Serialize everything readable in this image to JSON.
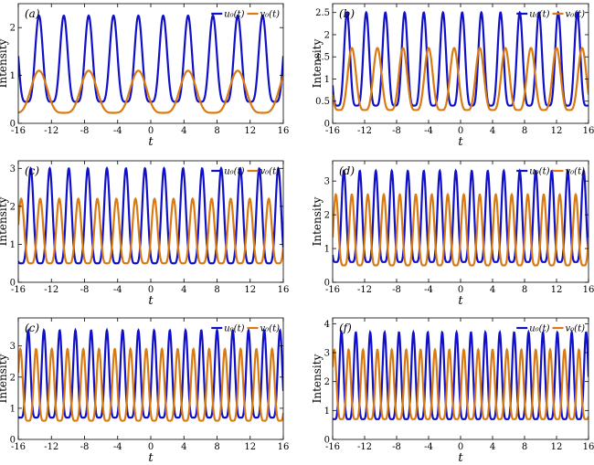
{
  "figure": {
    "series_colors": {
      "u": "#1010c8",
      "v": "#d97a12"
    }
  },
  "chart_data": [
    {
      "panel": "(a)",
      "type": "line",
      "xlabel": "t",
      "ylabel": "Intensity",
      "xlim": [
        -16,
        16
      ],
      "ylim": [
        0,
        2.5
      ],
      "xticks": [
        -16,
        -12,
        -8,
        -4,
        0,
        4,
        8,
        12,
        16
      ],
      "xtick_labels": [
        "-16",
        "-12",
        "-8",
        "-4",
        "0",
        "4",
        "8",
        "12",
        "16"
      ],
      "yticks": [
        0,
        1,
        2
      ],
      "ytick_labels": [
        "0",
        "1",
        "2"
      ],
      "legend": "top-right",
      "grid": false,
      "series": [
        {
          "name": "u_0(t)",
          "legend_label": "u₀(t)",
          "color": "#1010c8",
          "min": 0.45,
          "max": 2.25,
          "period": 3.0,
          "phase": -13.5,
          "sharp": 0.6
        },
        {
          "name": "v_0(t)",
          "legend_label": "v₀(t)",
          "color": "#d97a12",
          "min": 0.22,
          "max": 1.1,
          "period": 6.0,
          "phase": -13.5,
          "sharp": 0.5
        }
      ]
    },
    {
      "panel": "(b)",
      "type": "line",
      "xlabel": "t",
      "ylabel": "Intensity",
      "xlim": [
        -16,
        16
      ],
      "ylim": [
        0,
        2.7
      ],
      "xticks": [
        -16,
        -12,
        -8,
        -4,
        0,
        4,
        8,
        12,
        16
      ],
      "xtick_labels": [
        "-16",
        "-12",
        "-8",
        "-4",
        "0",
        "4",
        "8",
        "12",
        "16"
      ],
      "yticks": [
        0,
        0.5,
        1,
        1.5,
        2,
        2.5
      ],
      "ytick_labels": [
        "0",
        "0.5",
        "1",
        "1.5",
        "2",
        "2.5"
      ],
      "legend": "top-right",
      "grid": false,
      "series": [
        {
          "name": "u_0(t)",
          "legend_label": "u₀(t)",
          "color": "#1010c8",
          "min": 0.4,
          "max": 2.5,
          "period": 2.4,
          "phase": -14.2,
          "sharp": 0.6
        },
        {
          "name": "v_0(t)",
          "legend_label": "v₀(t)",
          "color": "#d97a12",
          "min": 0.3,
          "max": 1.7,
          "period": 3.2,
          "phase": -13.6,
          "sharp": 0.5
        }
      ]
    },
    {
      "panel": "(c)",
      "type": "line",
      "xlabel": "t",
      "ylabel": "Intensity",
      "xlim": [
        -16,
        16
      ],
      "ylim": [
        0,
        3.2
      ],
      "xticks": [
        -16,
        -12,
        -8,
        -4,
        0,
        4,
        8,
        12,
        16
      ],
      "xtick_labels": [
        "-16",
        "-12",
        "-8",
        "-4",
        "0",
        "4",
        "8",
        "12",
        "16"
      ],
      "yticks": [
        0,
        1,
        2,
        3
      ],
      "ytick_labels": [
        "0",
        "1",
        "2",
        "3"
      ],
      "legend": "top-right",
      "grid": false,
      "series": [
        {
          "name": "u_0(t)",
          "legend_label": "u₀(t)",
          "color": "#1010c8",
          "min": 0.5,
          "max": 3.0,
          "period": 2.3,
          "phase": -14.5,
          "sharp": 0.7
        },
        {
          "name": "v_0(t)",
          "legend_label": "v₀(t)",
          "color": "#d97a12",
          "min": 0.5,
          "max": 2.2,
          "period": 2.3,
          "phase": -13.35,
          "sharp": 0.6
        }
      ]
    },
    {
      "panel": "(d)",
      "type": "line",
      "xlabel": "t",
      "ylabel": "Intensity",
      "xlim": [
        -16,
        16
      ],
      "ylim": [
        0,
        3.6
      ],
      "xticks": [
        -16,
        -12,
        -8,
        -4,
        0,
        4,
        8,
        12,
        16
      ],
      "xtick_labels": [
        "-16",
        "-12",
        "-8",
        "-4",
        "0",
        "4",
        "8",
        "12",
        "16"
      ],
      "yticks": [
        0,
        1,
        2,
        3
      ],
      "ytick_labels": [
        "0",
        "1",
        "2",
        "3"
      ],
      "legend": "top-right",
      "grid": false,
      "series": [
        {
          "name": "u_0(t)",
          "legend_label": "u₀(t)",
          "color": "#1010c8",
          "min": 0.6,
          "max": 3.3,
          "period": 2.0,
          "phase": -14.6,
          "sharp": 0.7
        },
        {
          "name": "v_0(t)",
          "legend_label": "v₀(t)",
          "color": "#d97a12",
          "min": 0.5,
          "max": 2.6,
          "period": 2.0,
          "phase": -13.6,
          "sharp": 0.6
        }
      ]
    },
    {
      "panel": "(c)",
      "type": "line",
      "xlabel": "t",
      "ylabel": "Intensity",
      "xlim": [
        -16,
        16
      ],
      "ylim": [
        0,
        3.9
      ],
      "xticks": [
        -16,
        -12,
        -8,
        -4,
        0,
        4,
        8,
        12,
        16
      ],
      "xtick_labels": [
        "-16",
        "-12",
        "-8",
        "-4",
        "0",
        "4",
        "8",
        "12",
        "16"
      ],
      "yticks": [
        0,
        1,
        2,
        3
      ],
      "ytick_labels": [
        "0",
        "1",
        "2",
        "3"
      ],
      "legend": "top-right",
      "grid": false,
      "series": [
        {
          "name": "u_0(t)",
          "legend_label": "u₀(t)",
          "color": "#1010c8",
          "min": 0.7,
          "max": 3.5,
          "period": 1.9,
          "phase": -14.8,
          "sharp": 0.75
        },
        {
          "name": "v_0(t)",
          "legend_label": "v₀(t)",
          "color": "#d97a12",
          "min": 0.6,
          "max": 2.9,
          "period": 1.9,
          "phase": -13.85,
          "sharp": 0.65
        }
      ]
    },
    {
      "panel": "(f)",
      "type": "line",
      "xlabel": "t",
      "ylabel": "Intensity",
      "xlim": [
        -16,
        16
      ],
      "ylim": [
        0,
        4.2
      ],
      "xticks": [
        -16,
        -12,
        -8,
        -4,
        0,
        4,
        8,
        12,
        16
      ],
      "xtick_labels": [
        "-16",
        "-12",
        "-8",
        "-4",
        "0",
        "4",
        "8",
        "12",
        "16"
      ],
      "yticks": [
        0,
        1,
        2,
        3,
        4
      ],
      "ytick_labels": [
        "0",
        "1",
        "2",
        "3",
        "4"
      ],
      "legend": "top-right",
      "grid": false,
      "series": [
        {
          "name": "u_0(t)",
          "legend_label": "u₀(t)",
          "color": "#1010c8",
          "min": 0.7,
          "max": 3.7,
          "period": 1.8,
          "phase": -14.9,
          "sharp": 0.75
        },
        {
          "name": "v_0(t)",
          "legend_label": "v₀(t)",
          "color": "#d97a12",
          "min": 0.7,
          "max": 3.1,
          "period": 1.8,
          "phase": -14.0,
          "sharp": 0.65
        }
      ]
    }
  ]
}
